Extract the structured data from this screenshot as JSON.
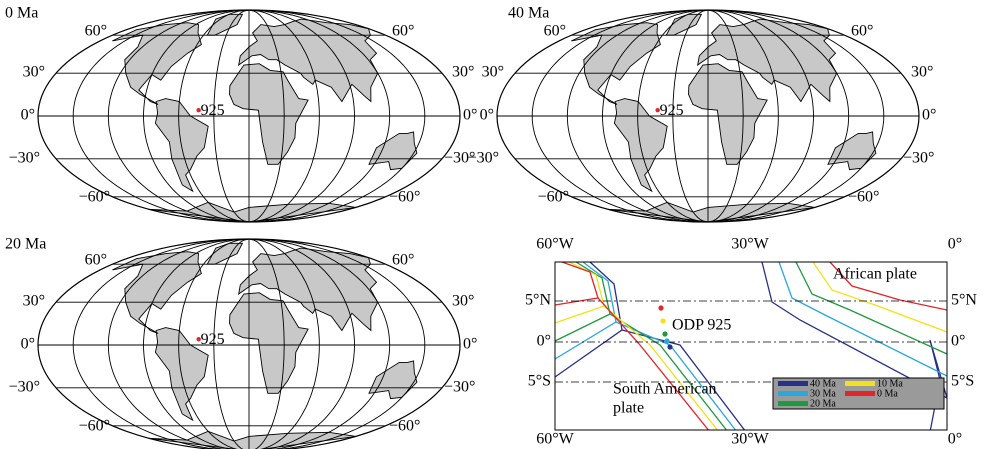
{
  "maps": [
    {
      "title": "0 Ma",
      "site": "925",
      "lat_labels_left": [
        "60°",
        "30°",
        "0°",
        "−30°",
        "−60°"
      ],
      "lat_labels_right": [
        "60°",
        "30°",
        "0°",
        "−30°",
        "−60°"
      ]
    },
    {
      "title": "40 Ma",
      "site": "925",
      "lat_labels_left": [
        "60°",
        "30°",
        "0°",
        "−30°",
        "−60°"
      ],
      "lat_labels_right": [
        "60°",
        "30°",
        "0°",
        "−30°",
        "−60°"
      ]
    },
    {
      "title": "20 Ma",
      "site": "925",
      "lat_labels_left": [
        "60°",
        "30°",
        "0°",
        "−30°",
        "−60°"
      ],
      "lat_labels_right": [
        "60°",
        "30°",
        "0°",
        "−30°",
        "−60°"
      ]
    }
  ],
  "regional": {
    "top_axis": [
      "60°W",
      "30°W",
      "0°"
    ],
    "bottom_axis": [
      "60°W",
      "30°W",
      "0°"
    ],
    "left_axis": [
      "5°N",
      "0°",
      "5°S"
    ],
    "right_axis": [
      "5°N",
      "0°",
      "5°S"
    ],
    "site": "ODP 925",
    "african_plate": "African plate",
    "south_american_plate": [
      "South American",
      "plate"
    ],
    "legend": [
      {
        "name": "40 Ma",
        "color": "#27308a"
      },
      {
        "name": "30 Ma",
        "color": "#2aa7df"
      },
      {
        "name": "20 Ma",
        "color": "#1c9a3e"
      },
      {
        "name": "10 Ma",
        "color": "#f2e11c"
      },
      {
        "name": "0 Ma",
        "color": "#e1262b"
      }
    ]
  }
}
